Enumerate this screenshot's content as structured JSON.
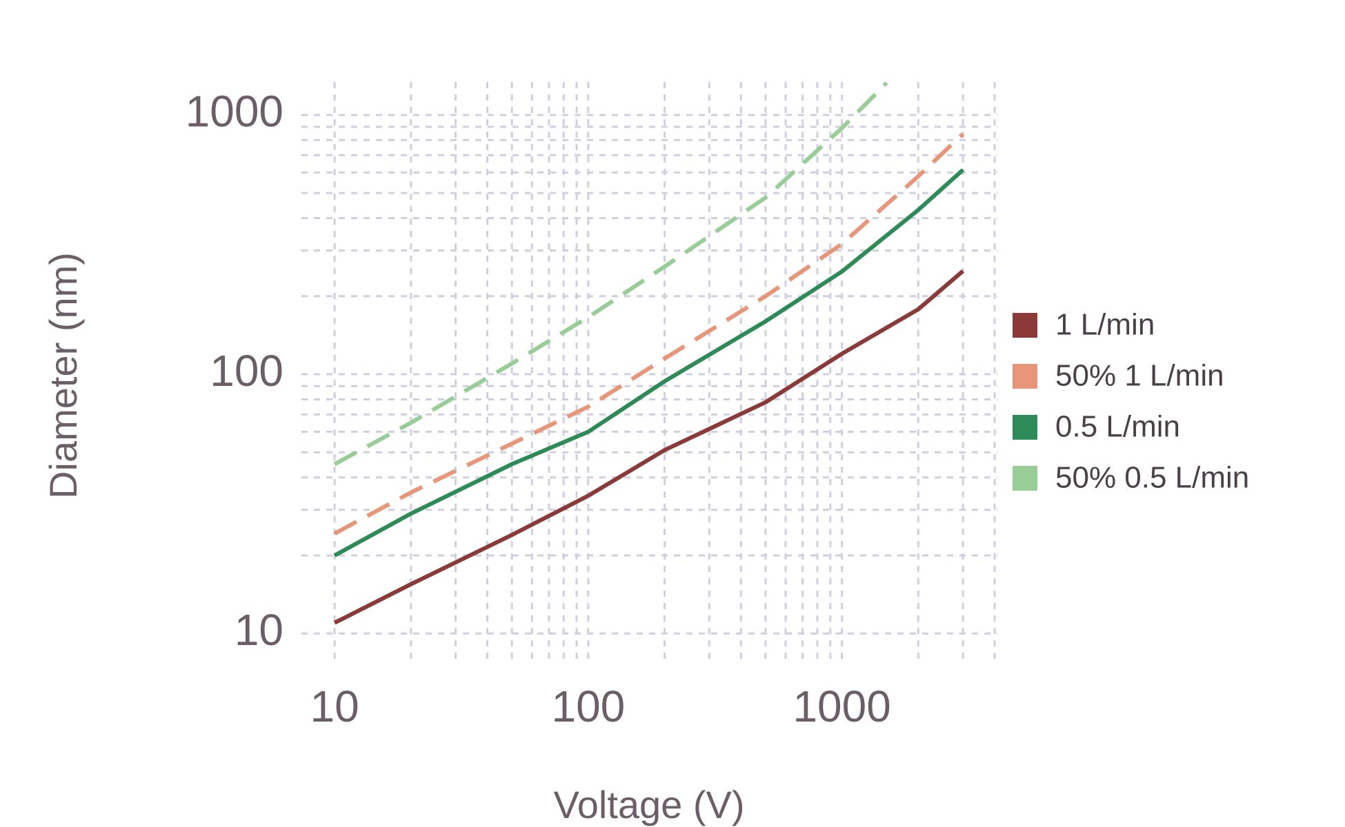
{
  "chart_data": {
    "type": "line",
    "x_label": "Voltage (V)",
    "y_label": "Diameter (nm)",
    "xscale": "log",
    "yscale": "log",
    "grid": true,
    "legend": "right",
    "xlim": [
      7.4,
      4100
    ],
    "ylim": [
      7.7,
      1340
    ],
    "xticks": [
      10,
      100,
      1000
    ],
    "yticks": [
      10,
      100,
      1000
    ],
    "xminor_ticks": [
      20,
      30,
      40,
      50,
      60,
      70,
      80,
      90,
      200,
      300,
      400,
      500,
      600,
      700,
      800,
      900,
      2000,
      3000,
      4000
    ],
    "yminor_ticks": [
      20,
      30,
      40,
      50,
      60,
      70,
      80,
      90,
      200,
      300,
      400,
      500,
      600,
      700,
      800,
      900
    ],
    "series": [
      {
        "name": "1 L/min",
        "color": "#8b3a3a",
        "linestyle": "solid",
        "x": [
          10,
          20,
          50,
          100,
          200,
          500,
          1000,
          2000,
          3000
        ],
        "values": [
          11,
          15.5,
          24,
          34,
          51,
          78,
          120,
          178,
          250
        ]
      },
      {
        "name": "50% 1 L/min",
        "color": "#e8967a",
        "linestyle": "dashed",
        "x": [
          10,
          20,
          50,
          100,
          200,
          500,
          1000,
          2000,
          3000
        ],
        "values": [
          24.3,
          35,
          54,
          75,
          115,
          200,
          318,
          580,
          845
        ]
      },
      {
        "name": "0.5 L/min",
        "color": "#2e8b57",
        "linestyle": "solid",
        "x": [
          10,
          20,
          50,
          100,
          200,
          500,
          1000,
          2000,
          3000
        ],
        "values": [
          20,
          29,
          45,
          60,
          94,
          160,
          249,
          430,
          614
        ]
      },
      {
        "name": "50% 0.5 L/min",
        "color": "#98cd98",
        "linestyle": "dashed",
        "x": [
          10,
          20,
          50,
          100,
          200,
          500,
          1000,
          1500
        ],
        "values": [
          45,
          65,
          110,
          166,
          260,
          480,
          890,
          1330
        ]
      }
    ]
  }
}
